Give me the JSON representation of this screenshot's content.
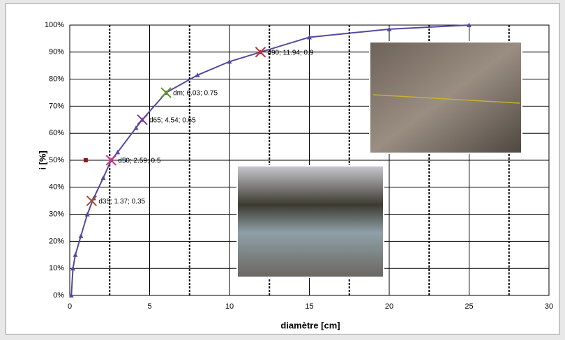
{
  "chart_data": {
    "type": "line",
    "xlabel": "diamètre [cm]",
    "ylabel": "i [%]",
    "xlim": [
      0,
      30
    ],
    "xticks": [
      0,
      5,
      10,
      15,
      20,
      25,
      30
    ],
    "xminor": [
      2.5,
      7.5,
      12.5,
      17.5,
      22.5,
      27.5
    ],
    "ylim": [
      0,
      100
    ],
    "yticks": [
      {
        "value": 0,
        "label": "0%"
      },
      {
        "value": 10,
        "label": "10%"
      },
      {
        "value": 20,
        "label": "20%"
      },
      {
        "value": 30,
        "label": "30%"
      },
      {
        "value": 40,
        "label": "40%"
      },
      {
        "value": 50,
        "label": "50%"
      },
      {
        "value": 60,
        "label": "60%"
      },
      {
        "value": 70,
        "label": "70%"
      },
      {
        "value": 80,
        "label": "80%"
      },
      {
        "value": 90,
        "label": "90%"
      },
      {
        "value": 100,
        "label": "100%"
      }
    ],
    "grid": true,
    "series": [
      {
        "color": "#55489c",
        "x": [
          0.1,
          0.2,
          0.35,
          0.7,
          1.1,
          1.5,
          2.1,
          2.59,
          3.0,
          4.15,
          4.54,
          6.03,
          8.0,
          10.0,
          11.94,
          15.0,
          20.0,
          25.0
        ],
        "values": [
          0,
          10,
          15,
          22,
          30,
          36,
          43.5,
          50,
          53,
          62,
          65,
          75,
          81.5,
          86.5,
          90,
          95.5,
          98.5,
          100
        ]
      },
      {
        "color": "#8b1a1a",
        "marker": "square",
        "x": [
          1.0
        ],
        "values": [
          50
        ]
      },
      {
        "color": "#3a6fc0",
        "marker": "plus",
        "x": [
          3.5
        ],
        "values": [
          50
        ]
      }
    ],
    "annotations": [
      {
        "text": "d35; 1.37; 0.35",
        "x": 1.37,
        "y": 35,
        "color": "#a0522d"
      },
      {
        "text": "d50; 2.59; 0.5",
        "x": 2.59,
        "y": 50,
        "color": "#e0308a"
      },
      {
        "text": "d65; 4.54; 0.65",
        "x": 4.54,
        "y": 65,
        "color": "#7a3aa0"
      },
      {
        "text": "dm; 6.03; 0.75",
        "x": 6.03,
        "y": 75,
        "color": "#5a9a1a"
      },
      {
        "text": "d90; 11.94; 0.9",
        "x": 11.94,
        "y": 90,
        "color": "#cc2a2a"
      }
    ]
  }
}
